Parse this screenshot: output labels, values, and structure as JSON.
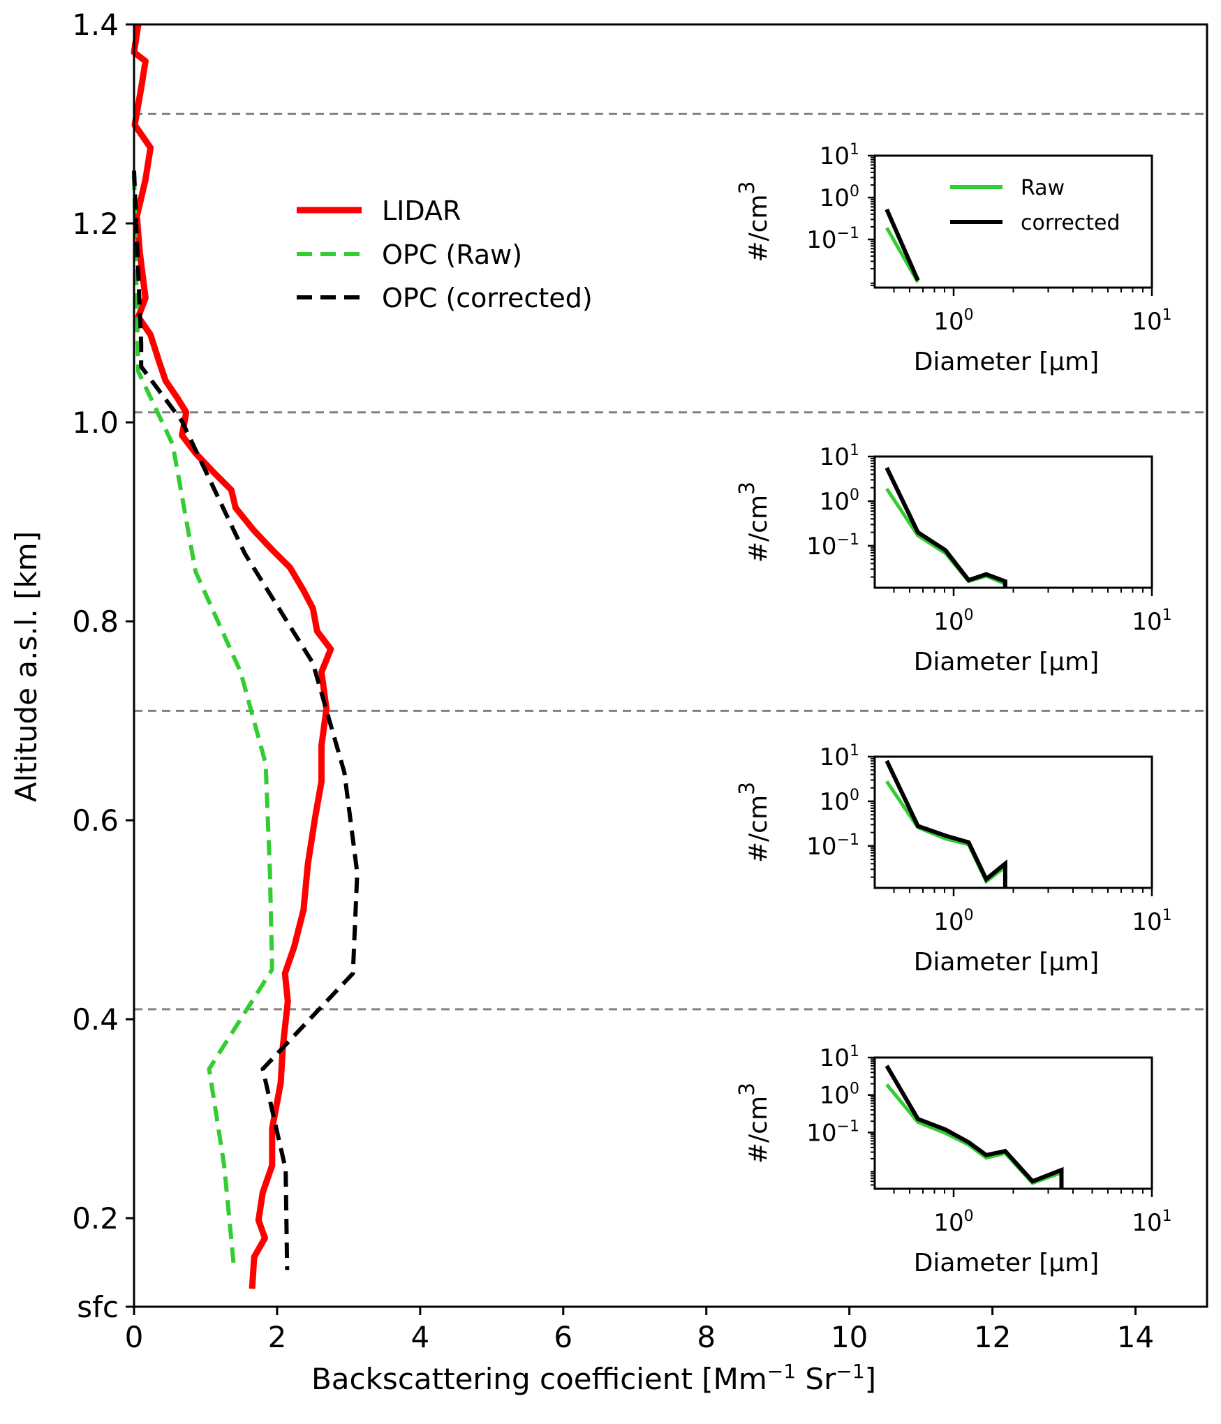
{
  "chart_data": {
    "type": "line",
    "xlabel": "Backscattering coefficient [Mm⁻¹ Sr⁻¹]",
    "xlabel_parts": {
      "main": "Backscattering coefficient [Mm",
      "sup1": "−1",
      "mid": " Sr",
      "sup2": "−1",
      "end": "]"
    },
    "ylabel": "Altitude a.s.l. [km]",
    "xlim": [
      0,
      15
    ],
    "ylim": [
      0.111,
      1.4
    ],
    "xticks": [
      0,
      2,
      4,
      6,
      8,
      10,
      12,
      14
    ],
    "xtick_labels": [
      "0",
      "2",
      "4",
      "6",
      "8",
      "10",
      "12",
      "14"
    ],
    "yticks": [
      0.111,
      0.2,
      0.4,
      0.6,
      0.8,
      1.0,
      1.2,
      1.4
    ],
    "ytick_labels": [
      "sfc",
      "0.2",
      "0.4",
      "0.6",
      "0.8",
      "1.0",
      "1.2",
      "1.4"
    ],
    "layer_boundaries_km": [
      1.31,
      1.01,
      0.71,
      0.41
    ],
    "legend": {
      "position": "upper-left-center",
      "entries": [
        {
          "label": "LIDAR",
          "color": "#ff0000",
          "style": "solid"
        },
        {
          "label": "OPC (Raw)",
          "color": "#32cd32",
          "style": "dashed"
        },
        {
          "label": "OPC (corrected)",
          "color": "#000000",
          "style": "dashed"
        }
      ]
    },
    "series": [
      {
        "name": "LIDAR",
        "color": "#ff0000",
        "style": "solid",
        "points": [
          [
            0.06,
            1.4
          ],
          [
            0.0,
            1.372
          ],
          [
            0.16,
            1.363
          ],
          [
            0.1,
            1.336
          ],
          [
            0.01,
            1.299
          ],
          [
            0.23,
            1.276
          ],
          [
            0.16,
            1.244
          ],
          [
            0.04,
            1.207
          ],
          [
            0.08,
            1.171
          ],
          [
            0.16,
            1.125
          ],
          [
            0.06,
            1.106
          ],
          [
            0.23,
            1.088
          ],
          [
            0.35,
            1.061
          ],
          [
            0.44,
            1.042
          ],
          [
            0.61,
            1.024
          ],
          [
            0.73,
            1.01
          ],
          [
            0.67,
            0.987
          ],
          [
            0.86,
            0.969
          ],
          [
            1.11,
            0.95
          ],
          [
            1.36,
            0.932
          ],
          [
            1.42,
            0.914
          ],
          [
            1.68,
            0.891
          ],
          [
            1.93,
            0.872
          ],
          [
            2.18,
            0.854
          ],
          [
            2.37,
            0.831
          ],
          [
            2.5,
            0.813
          ],
          [
            2.56,
            0.79
          ],
          [
            2.75,
            0.772
          ],
          [
            2.62,
            0.749
          ],
          [
            2.69,
            0.712
          ],
          [
            2.62,
            0.675
          ],
          [
            2.62,
            0.639
          ],
          [
            2.53,
            0.602
          ],
          [
            2.43,
            0.556
          ],
          [
            2.37,
            0.51
          ],
          [
            2.24,
            0.473
          ],
          [
            2.11,
            0.446
          ],
          [
            2.15,
            0.418
          ],
          [
            2.08,
            0.372
          ],
          [
            2.05,
            0.336
          ],
          [
            1.93,
            0.29
          ],
          [
            1.93,
            0.253
          ],
          [
            1.8,
            0.226
          ],
          [
            1.74,
            0.198
          ],
          [
            1.83,
            0.18
          ],
          [
            1.68,
            0.161
          ],
          [
            1.65,
            0.129
          ]
        ]
      },
      {
        "name": "OPC (Raw)",
        "color": "#32cd32",
        "style": "dashed",
        "points": [
          [
            0.0,
            1.249
          ],
          [
            0.06,
            1.051
          ],
          [
            0.54,
            0.978
          ],
          [
            0.86,
            0.85
          ],
          [
            1.49,
            0.749
          ],
          [
            1.84,
            0.657
          ],
          [
            1.9,
            0.547
          ],
          [
            1.93,
            0.45
          ],
          [
            1.05,
            0.35
          ],
          [
            1.26,
            0.253
          ],
          [
            1.4,
            0.148
          ]
        ]
      },
      {
        "name": "OPC (corrected)",
        "color": "#000000",
        "style": "dashed",
        "points": [
          [
            0.0,
            1.253
          ],
          [
            0.1,
            1.079
          ],
          [
            0.1,
            1.056
          ],
          [
            0.67,
            1.001
          ],
          [
            1.55,
            0.868
          ],
          [
            2.5,
            0.758
          ],
          [
            2.94,
            0.648
          ],
          [
            3.12,
            0.547
          ],
          [
            3.06,
            0.446
          ],
          [
            1.8,
            0.35
          ],
          [
            2.12,
            0.249
          ],
          [
            2.14,
            0.148
          ]
        ]
      }
    ],
    "insets": [
      {
        "layer": "1.01-1.31 km",
        "type": "line",
        "xscale": "log",
        "yscale": "log",
        "xlabel": "Diameter [μm]",
        "ylabel": "#/cm³",
        "xlim": [
          0.4,
          10
        ],
        "ylim": [
          0.007,
          10
        ],
        "ylog_range": [
          -2.15,
          1
        ],
        "legend": {
          "position": "upper-right",
          "entries": [
            "Raw",
            "corrected"
          ]
        },
        "series": [
          {
            "name": "Raw",
            "color": "#32cd32",
            "x": [
              0.46,
              0.66
            ],
            "y": [
              0.19,
              0.0095
            ]
          },
          {
            "name": "corrected",
            "color": "#000000",
            "x": [
              0.46,
              0.66
            ],
            "y": [
              0.52,
              0.0105
            ]
          }
        ]
      },
      {
        "layer": "0.71-1.01 km",
        "type": "line",
        "xscale": "log",
        "yscale": "log",
        "xlabel": "Diameter [μm]",
        "ylabel": "#/cm³",
        "xlim": [
          0.4,
          10
        ],
        "ylim": [
          0.0115,
          10
        ],
        "ylog_range": [
          -1.94,
          1
        ],
        "series": [
          {
            "name": "Raw",
            "color": "#32cd32",
            "x": [
              0.46,
              0.66,
              0.91,
              1.19,
              1.46,
              1.82
            ],
            "y": [
              1.9,
              0.17,
              0.068,
              0.016,
              0.021,
              0.014
            ]
          },
          {
            "name": "corrected",
            "color": "#000000",
            "x": [
              0.46,
              0.66,
              0.91,
              1.19,
              1.46,
              1.82,
              1.82
            ],
            "y": [
              5.6,
              0.2,
              0.079,
              0.017,
              0.023,
              0.016,
              0.0115
            ]
          }
        ]
      },
      {
        "layer": "0.41-0.71 km",
        "type": "line",
        "xscale": "log",
        "yscale": "log",
        "xlabel": "Diameter [μm]",
        "ylabel": "#/cm³",
        "xlim": [
          0.4,
          10
        ],
        "ylim": [
          0.0115,
          10
        ],
        "ylog_range": [
          -1.94,
          1
        ],
        "series": [
          {
            "name": "Raw",
            "color": "#32cd32",
            "x": [
              0.46,
              0.66,
              0.91,
              1.19,
              1.46,
              1.82
            ],
            "y": [
              2.8,
              0.26,
              0.145,
              0.107,
              0.016,
              0.034
            ]
          },
          {
            "name": "corrected",
            "color": "#000000",
            "x": [
              0.46,
              0.66,
              0.91,
              1.19,
              1.46,
              1.82,
              1.82
            ],
            "y": [
              8.1,
              0.28,
              0.17,
              0.12,
              0.018,
              0.04,
              0.0115
            ]
          }
        ]
      },
      {
        "layer": "sfc-0.41 km",
        "type": "line",
        "xscale": "log",
        "yscale": "log",
        "xlabel": "Diameter [μm]",
        "ylabel": "#/cm³",
        "xlim": [
          0.4,
          10
        ],
        "ylim": [
          0.0032,
          10
        ],
        "ylog_range": [
          -2.5,
          1
        ],
        "series": [
          {
            "name": "Raw",
            "color": "#32cd32",
            "x": [
              0.46,
              0.66,
              0.91,
              1.19,
              1.46,
              1.82,
              2.5,
              3.5
            ],
            "y": [
              1.9,
              0.19,
              0.096,
              0.047,
              0.021,
              0.028,
              0.0045,
              0.0085
            ]
          },
          {
            "name": "corrected",
            "color": "#000000",
            "x": [
              0.46,
              0.66,
              0.91,
              1.19,
              1.46,
              1.82,
              2.5,
              3.5,
              3.5
            ],
            "y": [
              6.0,
              0.23,
              0.12,
              0.055,
              0.025,
              0.032,
              0.005,
              0.01,
              0.0032
            ]
          }
        ]
      }
    ],
    "inset_ytick_labels": [
      {
        "base": "10",
        "exp": "1"
      },
      {
        "base": "10",
        "exp": "0"
      },
      {
        "base": "10",
        "exp": "−1"
      }
    ],
    "inset_xtick_labels": [
      {
        "base": "10",
        "exp": "0"
      },
      {
        "base": "10",
        "exp": "1"
      }
    ],
    "inset_ylabel_parts": {
      "main": "#/cm",
      "sup": "3"
    },
    "inset_xlabel": "Diameter [μm]"
  }
}
